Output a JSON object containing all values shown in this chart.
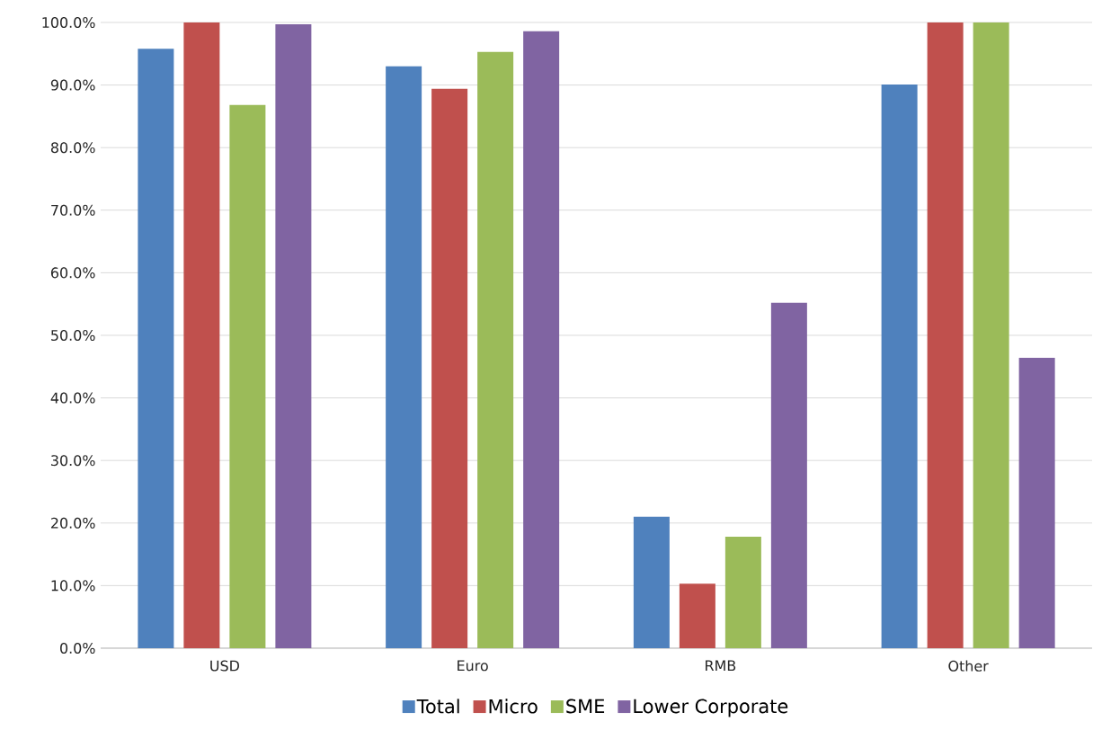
{
  "chart_data": {
    "type": "bar",
    "categories": [
      "USD",
      "Euro",
      "RMB",
      "Other"
    ],
    "series": [
      {
        "name": "Total",
        "color": "#4f81bd",
        "values": [
          95.8,
          93.0,
          21.0,
          90.1
        ]
      },
      {
        "name": "Micro",
        "color": "#c0504d",
        "values": [
          100,
          89.4,
          10.3,
          100
        ]
      },
      {
        "name": "SME",
        "color": "#9bbb59",
        "values": [
          86.8,
          95.3,
          17.8,
          100
        ]
      },
      {
        "name": "Lower Corporate",
        "color": "#8064a2",
        "values": [
          99.7,
          98.6,
          55.2,
          46.4
        ]
      }
    ],
    "ylim": [
      0,
      100
    ],
    "yticks": [
      {
        "value": 0,
        "label": "0.0%"
      },
      {
        "value": 10,
        "label": "10.0%"
      },
      {
        "value": 20,
        "label": "20.0%"
      },
      {
        "value": 30,
        "label": "30.0%"
      },
      {
        "value": 40,
        "label": "40.0%"
      },
      {
        "value": 50,
        "label": "50.0%"
      },
      {
        "value": 60,
        "label": "60.0%"
      },
      {
        "value": 70,
        "label": "70.0%"
      },
      {
        "value": 80,
        "label": "80.0%"
      },
      {
        "value": 90,
        "label": "90.0%"
      },
      {
        "value": 100,
        "label": "100.0%"
      }
    ],
    "grid": "y",
    "legend": "bottom"
  }
}
